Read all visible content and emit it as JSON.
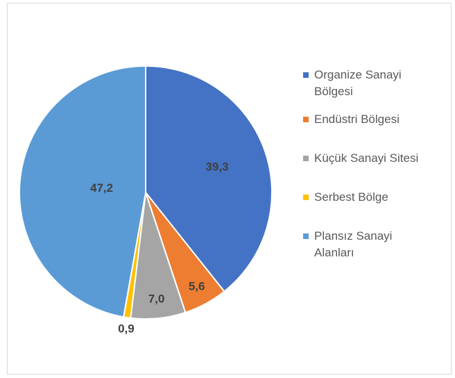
{
  "chart_data": {
    "type": "pie",
    "categories": [
      "Organize Sanayi Bölgesi",
      "Endüstri Bölgesi",
      "Küçük Sanayi Sitesi",
      "Serbest Bölge",
      "Plansız Sanayi Alanları"
    ],
    "values": [
      39.3,
      5.6,
      7.0,
      0.9,
      47.2
    ],
    "value_labels": [
      "39,3",
      "5,6",
      "7,0",
      "0,9",
      "47,2"
    ],
    "colors": [
      "#4472c4",
      "#ed7d31",
      "#a5a5a5",
      "#ffc000",
      "#5b9bd5"
    ],
    "legend": "right"
  }
}
